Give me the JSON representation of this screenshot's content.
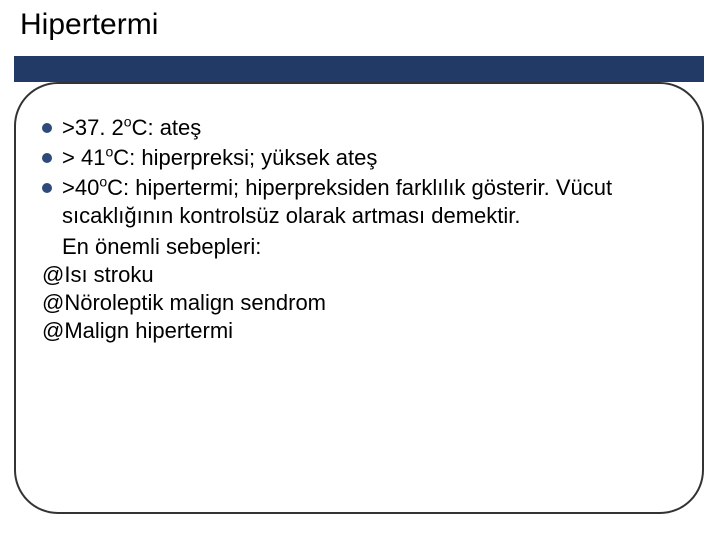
{
  "slide": {
    "title": "Hipertermi",
    "bullets": [
      {
        "pre": ">37. 2",
        "sup": "o",
        "post": "C: ateş"
      },
      {
        "pre": "> 41",
        "sup": "o",
        "post": "C: hiperpreksi; yüksek ateş"
      },
      {
        "pre": ">40",
        "sup": "o",
        "post": "C: hipertermi; hiperpreksiden farklılık gösterir. Vücut sıcaklığının kontrolsüz olarak artması demektir."
      }
    ],
    "extra_line": "En önemli sebepleri:",
    "at_lines": [
      "@Isı stroku",
      "@Nöroleptik malign sendrom",
      "@Malign hipertermi"
    ],
    "style": {
      "title_fontsize": 30,
      "body_fontsize": 22,
      "bullet_color": "#2d4a7a",
      "separator_color": "#213a66",
      "border_color": "#333333",
      "background_color": "#ffffff",
      "text_color": "#000000",
      "border_radius": 44
    }
  }
}
